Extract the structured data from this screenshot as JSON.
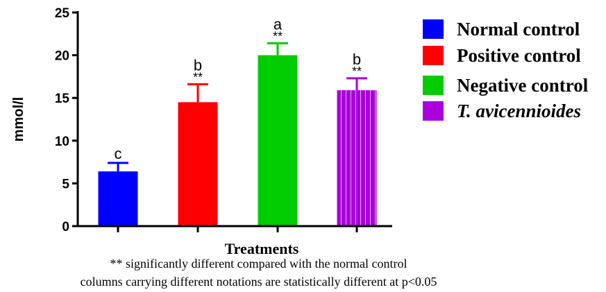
{
  "chart_data": {
    "type": "bar",
    "categories": [
      "Normal control",
      "Positive control",
      "Negative control",
      "T. avicennioides"
    ],
    "values": [
      6.4,
      14.5,
      20.0,
      15.9
    ],
    "errors": [
      1.0,
      2.1,
      1.4,
      1.4
    ],
    "letters": [
      "c",
      "b",
      "a",
      "b"
    ],
    "significance": [
      "",
      "**",
      "**",
      "**"
    ],
    "colors": [
      "#0000ff",
      "#ff0000",
      "#00cc00",
      "#aa00dd"
    ],
    "ylabel": "mmol/l",
    "xlabel": "Treatments",
    "ylim": [
      0,
      25
    ],
    "yticks": [
      "0",
      "5",
      "10",
      "15",
      "20",
      "25"
    ],
    "legend": {
      "placement": "right",
      "items": [
        {
          "label": "Normal control",
          "italic": false
        },
        {
          "label": "Positive control",
          "italic": false
        },
        {
          "label": "Negative control",
          "italic": false
        },
        {
          "label": "T. avicennioides",
          "italic": true
        }
      ]
    }
  },
  "footnotes": {
    "line1": "** significantly different compared with the normal control",
    "line2": "columns carrying different notations are statistically different at p<0.05"
  }
}
